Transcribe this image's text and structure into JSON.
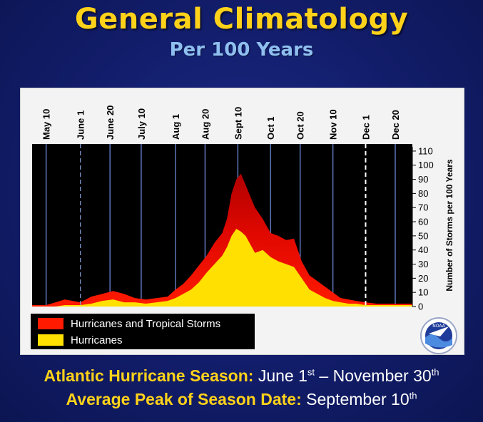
{
  "header": {
    "title": "General Climatology",
    "subtitle": "Per 100 Years"
  },
  "footer": {
    "season_label": "Atlantic Hurricane Season:",
    "season_start": "June 1",
    "season_start_sup": "st",
    "season_dash": " – ",
    "season_end": "November 30",
    "season_end_sup": "th",
    "peak_label": "Average Peak of Season Date:",
    "peak_value": "September 10",
    "peak_sup": "th"
  },
  "logo_text": "NOAA",
  "colors": {
    "tropical": "#ff1a00",
    "hurricane": "#ffe000",
    "accent": "#ffd21a",
    "background": "#121d6a"
  },
  "chart_data": {
    "type": "area",
    "xlabel": "",
    "ylabel": "Number of Storms per 100 Years",
    "ylim": [
      0,
      115
    ],
    "yticks": [
      0,
      10,
      20,
      30,
      40,
      50,
      60,
      70,
      80,
      90,
      100,
      110
    ],
    "x_range": [
      "May 1",
      "Dec 31"
    ],
    "date_ticks": [
      {
        "label": "May 10",
        "date": "05-10",
        "dashed": false
      },
      {
        "label": "June 1",
        "date": "06-01",
        "dashed": true
      },
      {
        "label": "June 20",
        "date": "06-20",
        "dashed": false
      },
      {
        "label": "July 10",
        "date": "07-10",
        "dashed": false
      },
      {
        "label": "Aug 1",
        "date": "08-01",
        "dashed": false
      },
      {
        "label": "Aug 20",
        "date": "08-20",
        "dashed": false
      },
      {
        "label": "Sept 10",
        "date": "09-10",
        "dashed": false
      },
      {
        "label": "Oct 1",
        "date": "10-01",
        "dashed": false
      },
      {
        "label": "Oct 20",
        "date": "10-20",
        "dashed": false
      },
      {
        "label": "Nov 10",
        "date": "11-10",
        "dashed": false
      },
      {
        "label": "Dec 1",
        "date": "12-01",
        "dashed": true
      },
      {
        "label": "Dec 20",
        "date": "12-20",
        "dashed": false
      }
    ],
    "grid": false,
    "legend_position": "bottom-left",
    "x": [
      "05-01",
      "05-10",
      "05-16",
      "05-22",
      "06-01",
      "06-08",
      "06-15",
      "06-22",
      "06-29",
      "07-06",
      "07-13",
      "07-20",
      "07-27",
      "08-01",
      "08-06",
      "08-11",
      "08-16",
      "08-21",
      "08-26",
      "08-31",
      "09-03",
      "09-06",
      "09-09",
      "09-12",
      "09-15",
      "09-18",
      "09-21",
      "09-26",
      "10-01",
      "10-06",
      "10-11",
      "10-16",
      "10-21",
      "10-26",
      "10-31",
      "11-05",
      "11-10",
      "11-15",
      "11-20",
      "11-25",
      "12-01",
      "12-08",
      "12-15",
      "12-22",
      "12-31"
    ],
    "series": [
      {
        "name": "Hurricanes and Tropical Storms",
        "color": "#ff1a00",
        "values": [
          1,
          1,
          3,
          5,
          3,
          7,
          9,
          11,
          9,
          6,
          5,
          6,
          7,
          12,
          16,
          22,
          29,
          36,
          45,
          52,
          62,
          80,
          90,
          94,
          86,
          78,
          70,
          62,
          52,
          50,
          47,
          48,
          32,
          22,
          18,
          14,
          10,
          6,
          5,
          4,
          3,
          2,
          2,
          2,
          2
        ]
      },
      {
        "name": "Hurricanes",
        "color": "#ffe000",
        "values": [
          0,
          0,
          0,
          1,
          1,
          2,
          4,
          5,
          3,
          3,
          2,
          3,
          4,
          6,
          9,
          12,
          17,
          24,
          30,
          36,
          42,
          50,
          55,
          53,
          50,
          44,
          38,
          40,
          35,
          32,
          30,
          28,
          20,
          12,
          9,
          6,
          4,
          3,
          2,
          2,
          1,
          1,
          1,
          1,
          1
        ]
      }
    ]
  }
}
